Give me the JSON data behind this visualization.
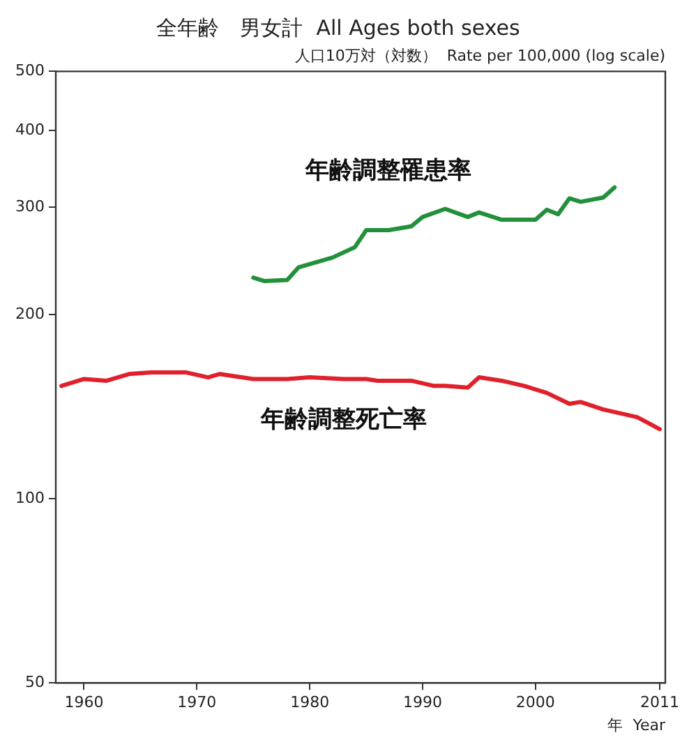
{
  "chart_data": {
    "type": "line",
    "title": "全年齢　男女計  All Ages both sexes",
    "ylabel": "人口10万対（対数）  Rate per 100,000 (log scale)",
    "xlabel": "年  Year",
    "log": "y",
    "grid": false,
    "marker": "none",
    "line_style": "solid",
    "xlim": [
      1957.5,
      2011.5
    ],
    "xticks": [
      1960,
      1970,
      1980,
      1990,
      2000,
      2011
    ],
    "ylim": [
      50,
      500
    ],
    "yticks": [
      50,
      100,
      200,
      300,
      400,
      500
    ],
    "series": [
      {
        "name": "年齢調整罹患率",
        "color": "#22903a",
        "x": [
          1975,
          1976,
          1978,
          1979,
          1982,
          1984,
          1985,
          1987,
          1989,
          1990,
          1992,
          1994,
          1995,
          1997,
          2000,
          2001,
          2002,
          2003,
          2004,
          2006,
          2007
        ],
        "values": [
          230,
          227,
          228,
          239,
          248,
          258,
          275,
          275,
          279,
          289,
          298,
          289,
          294,
          286,
          286,
          297,
          292,
          310,
          306,
          311,
          323
        ]
      },
      {
        "name": "年齢調整死亡率",
        "color": "#e0202a",
        "x": [
          1958,
          1960,
          1962,
          1964,
          1966,
          1969,
          1971,
          1972,
          1975,
          1978,
          1980,
          1983,
          1985,
          1986,
          1989,
          1991,
          1992,
          1994,
          1995,
          1996,
          1997,
          1999,
          2001,
          2003,
          2004,
          2006,
          2009,
          2010,
          2011
        ],
        "values": [
          153,
          157,
          156,
          160,
          161,
          161,
          158,
          160,
          157,
          157,
          158,
          157,
          157,
          156,
          156,
          153,
          153,
          152,
          158,
          157,
          156,
          153,
          149,
          143,
          144,
          140,
          136,
          133,
          130
        ]
      }
    ]
  }
}
